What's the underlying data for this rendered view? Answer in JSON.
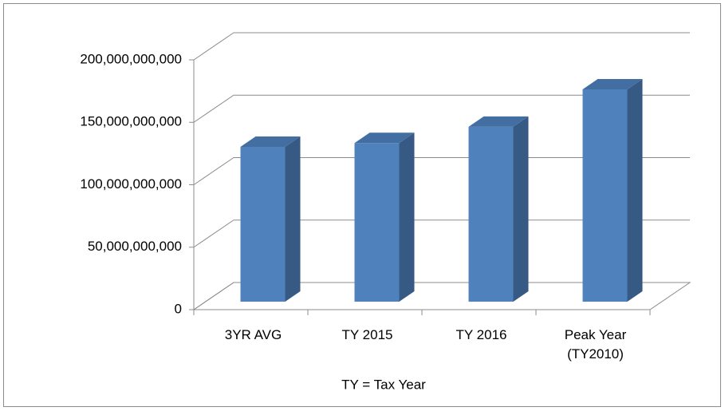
{
  "chart_data": {
    "type": "bar3d",
    "x_label": "TY = Tax Year",
    "categories": [
      "3YR AVG",
      "TY 2015",
      "TY 2016",
      "Peak Year (TY2010)"
    ],
    "values": [
      124000000000,
      127000000000,
      140000000000,
      170000000000
    ],
    "color": "#4f81bd",
    "ylim": [
      0,
      200000000000
    ],
    "yticks": [
      0,
      {
        "value": 50000000000,
        "label": "50,000,000,000"
      },
      {
        "value": 100000000000,
        "label": "100,000,000,000"
      },
      {
        "value": 150000000000,
        "label": "150,000,000,000"
      },
      {
        "value": 200000000000,
        "label": "200,000,000,000"
      }
    ],
    "grid": true
  }
}
